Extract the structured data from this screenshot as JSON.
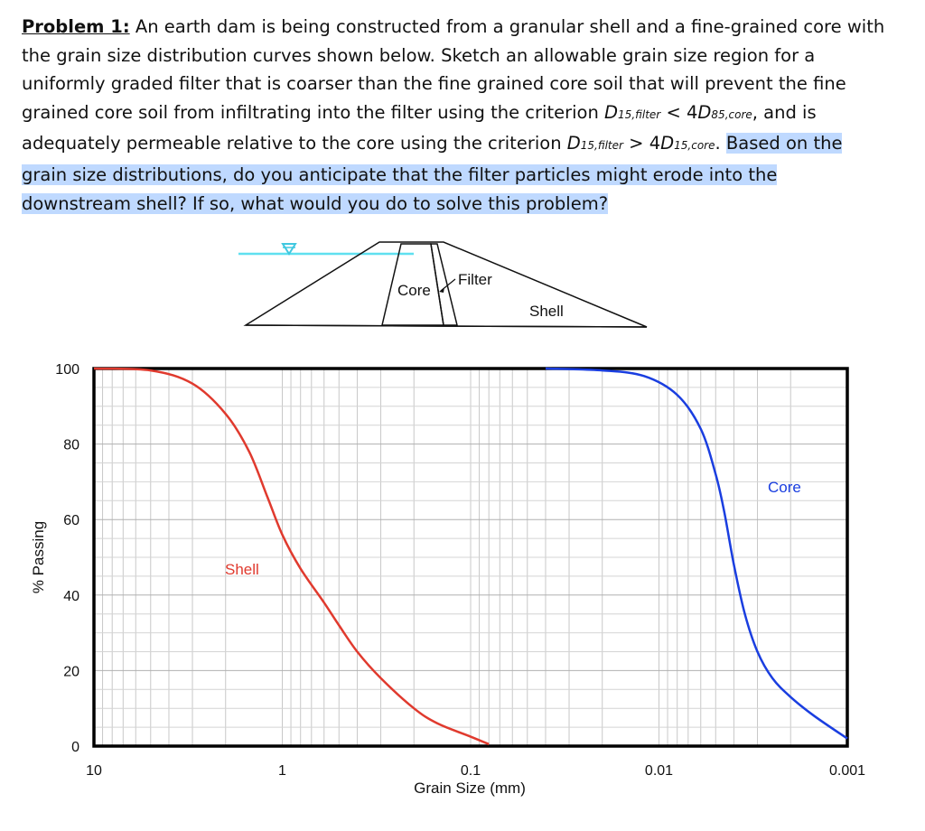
{
  "problem": {
    "lead": "Problem 1:",
    "part1": " An earth dam is being constructed from a granular shell and a fine-grained core with the grain size distribution curves shown below. Sketch an allowable grain size region for a uniformly graded filter that is coarser than the fine grained core soil that will prevent the fine grained core soil from infiltrating into the filter using the criterion ",
    "c1_D": "D",
    "c1_sub": "15,filter",
    "c1_mid": " < 4",
    "c1_D2": "D",
    "c1_sub2": "85,core",
    "part2": ", and is adequately permeable relative to the core using the criterion ",
    "c2_D": "D",
    "c2_sub": "15,filter",
    "c2_mid": " > 4",
    "c2_D2": "D",
    "c2_sub2": "15,core",
    "part3": ". ",
    "highlighted": "Based on the grain size distributions, do you anticipate that the filter particles might erode into the downstream shell? If so, what would you do to solve this problem?"
  },
  "dam_diagram": {
    "labels": {
      "core": "Core",
      "filter": "Filter",
      "shell": "Shell"
    }
  },
  "chart_data": {
    "type": "line",
    "xlabel": "Grain Size (mm)",
    "ylabel": "% Passing",
    "x_scale": "log",
    "x_reversed": true,
    "xlim": [
      10,
      0.001
    ],
    "ylim": [
      0,
      100
    ],
    "x_ticks": [
      "10",
      "1",
      "0.1",
      "0.01",
      "0.001"
    ],
    "y_ticks": [
      "0",
      "20",
      "40",
      "60",
      "80",
      "100"
    ],
    "grid": true,
    "series": [
      {
        "name": "Shell",
        "color": "#e03a2e",
        "x": [
          10,
          5,
          3,
          2,
          1.5,
          1.2,
          1,
          0.8,
          0.6,
          0.5,
          0.4,
          0.3,
          0.2,
          0.15,
          0.1,
          0.08
        ],
        "y": [
          100,
          99.5,
          96,
          88,
          78,
          66,
          56,
          47,
          38,
          32,
          25,
          18,
          10,
          6,
          2.5,
          0.5
        ]
      },
      {
        "name": "Core",
        "color": "#1a3ee0",
        "x": [
          0.04,
          0.02,
          0.012,
          0.008,
          0.006,
          0.005,
          0.0045,
          0.004,
          0.0035,
          0.003,
          0.0025,
          0.002,
          0.0015,
          0.001
        ],
        "y": [
          100,
          99.5,
          98,
          93,
          84,
          72,
          62,
          48,
          35,
          25,
          18,
          13,
          8,
          2
        ]
      }
    ]
  }
}
